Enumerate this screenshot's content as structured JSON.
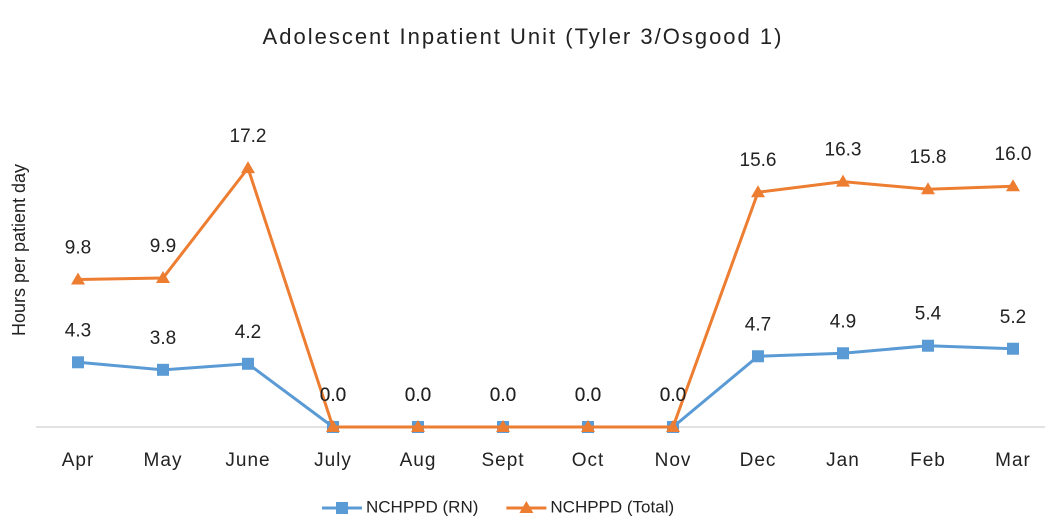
{
  "chart_data": {
    "type": "line",
    "title": "Adolescent Inpatient Unit (Tyler 3/Osgood 1)",
    "y_label": "Hours per patient day",
    "categories": [
      "Apr",
      "May",
      "June",
      "July",
      "Aug",
      "Sept",
      "Oct",
      "Nov",
      "Dec",
      "Jan",
      "Feb",
      "Mar"
    ],
    "series": [
      {
        "name": "NCHPPD (RN)",
        "color": "#5b9bd5",
        "marker": "square",
        "values": [
          4.3,
          3.8,
          4.2,
          0,
          0,
          0,
          0,
          0,
          4.7,
          4.9,
          5.4,
          5.2
        ],
        "value_labels": [
          "4.3",
          "3.8",
          "4.2",
          "0.0",
          "0.0",
          "0.0",
          "0.0",
          "0.0",
          "4.7",
          "4.9",
          "5.4",
          "5.2"
        ]
      },
      {
        "name": "NCHPPD (Total)",
        "color": "#ed7d31",
        "marker": "triangle",
        "values": [
          9.8,
          9.9,
          17.2,
          0,
          0,
          0,
          0,
          0,
          15.6,
          16.3,
          15.8,
          16
        ],
        "value_labels": [
          "9.8",
          "9.9",
          "17.2",
          "0.0",
          "0.0",
          "0.0",
          "0.0",
          "0.0",
          "15.6",
          "16.3",
          "15.8",
          "16.0"
        ]
      }
    ],
    "ylim": [
      0,
      20
    ],
    "legend": "bottom"
  }
}
